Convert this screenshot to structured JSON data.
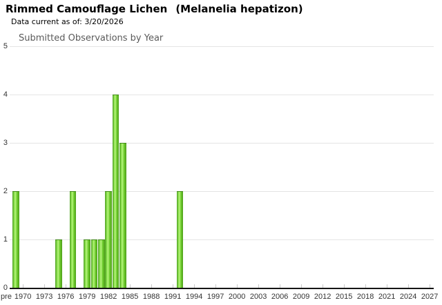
{
  "header": {
    "title_common": "Rimmed Camouflage Lichen",
    "title_scientific": "(Melanelia hepatizon)",
    "data_current_label": "Data current as of: 3/20/2026"
  },
  "chart_data": {
    "type": "bar",
    "title": "Submitted Observations by Year",
    "xlabel": "",
    "ylabel": "",
    "ylim": [
      0,
      5
    ],
    "y_tick_labels": [
      "0",
      "1",
      "2",
      "3",
      "4",
      "5"
    ],
    "x_tick_labels": [
      "pre",
      "1970",
      "1973",
      "1976",
      "1979",
      "1982",
      "1985",
      "1988",
      "1991",
      "1994",
      "1997",
      "2000",
      "2003",
      "2006",
      "2009",
      "2012",
      "2015",
      "2018",
      "2021",
      "2024",
      "2027"
    ],
    "grid": true,
    "legend": "none",
    "bars": [
      {
        "year": "pre",
        "value": 2
      },
      {
        "year": 1975,
        "value": 1
      },
      {
        "year": 1977,
        "value": 2
      },
      {
        "year": 1979,
        "value": 1
      },
      {
        "year": 1980,
        "value": 1
      },
      {
        "year": 1981,
        "value": 1
      },
      {
        "year": 1982,
        "value": 2
      },
      {
        "year": 1983,
        "value": 4
      },
      {
        "year": 1984,
        "value": 3
      },
      {
        "year": 1992,
        "value": 2
      }
    ],
    "colors": {
      "bar_gradient_edge": "#4e9e23",
      "bar_gradient_bright": "#8ee34e",
      "bar_gradient_highlight": "#b7f37d",
      "bar_gradient_mid": "#6ccb2b",
      "bar_gradient_edge_right": "#4f9e1c",
      "bar_cap": "#42891a",
      "gridline": "#e4e4e4",
      "axis_line": "#141414",
      "tick": "#c9c9c9",
      "axis_text": "#333333",
      "chart_title_text": "#5a5a5a"
    }
  }
}
